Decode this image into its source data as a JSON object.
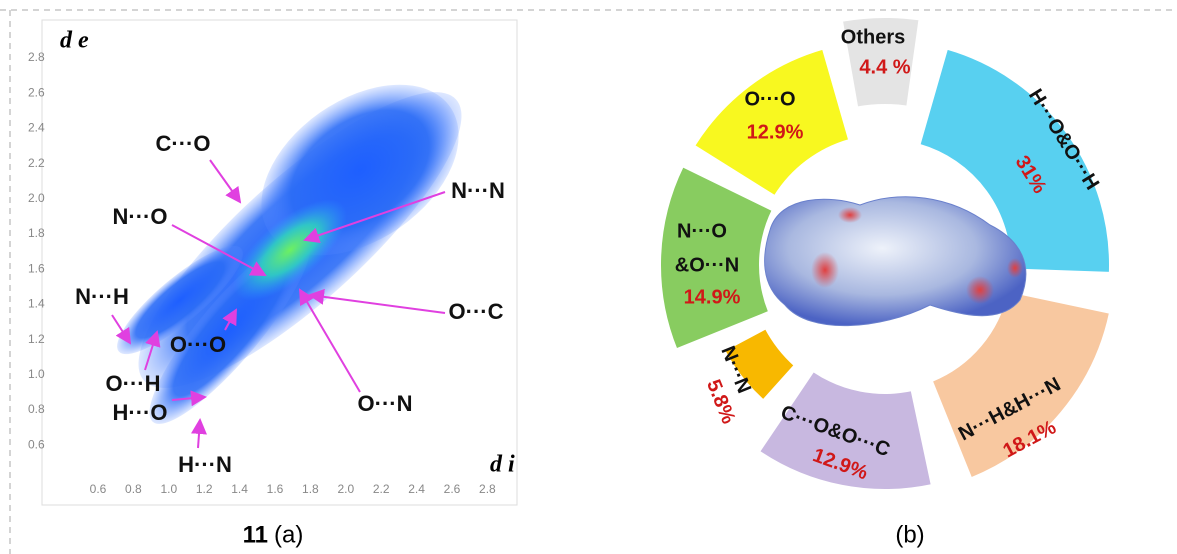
{
  "panel_a": {
    "y_axis_label": "d e",
    "x_axis_label": "d i",
    "yticks": [
      "2.8",
      "2.6",
      "2.4",
      "2.2",
      "2.0",
      "1.8",
      "1.6",
      "1.4",
      "1.2",
      "1.0",
      "0.8",
      "0.6"
    ],
    "xticks": [
      "0.6",
      "0.8",
      "1.0",
      "1.2",
      "1.4",
      "1.6",
      "1.8",
      "2.0",
      "2.2",
      "2.4",
      "2.6",
      "2.8"
    ],
    "annotations": [
      "C···O",
      "N···N",
      "N···O",
      "N···H",
      "O···O",
      "O···C",
      "O···H",
      "H···O",
      "O···N",
      "H···N"
    ],
    "caption_number": "11",
    "caption_label": "(a)"
  },
  "panel_b": {
    "segments": [
      {
        "label": "Others",
        "value": "4.4 %"
      },
      {
        "label": "H···O&O···H",
        "value": "31%"
      },
      {
        "label": "N···H&H···N",
        "value": "18.1%"
      },
      {
        "label": "C···O&O···C",
        "value": "12.9%"
      },
      {
        "label": "N···N",
        "value": "5.8%"
      },
      {
        "label": [
          "N···O",
          "&O···N"
        ],
        "value": "14.9%"
      },
      {
        "label": "O···O",
        "value": "12.9%"
      }
    ],
    "caption": "(b)"
  }
}
